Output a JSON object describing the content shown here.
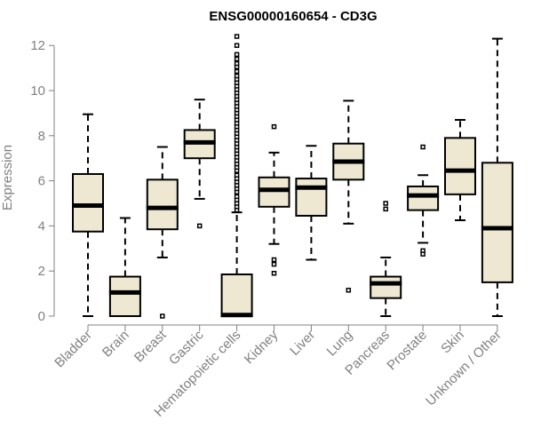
{
  "chart_data": {
    "type": "boxplot",
    "title": "ENSG00000160654 - CD3G",
    "xlabel": "",
    "ylabel": "Expression",
    "ylim": [
      0,
      12.5
    ],
    "yticks": [
      0,
      2,
      4,
      6,
      8,
      10,
      12
    ],
    "box_fill": "#EEE8D2",
    "axis_color": "#808080",
    "categories": [
      "Bladder",
      "Brain",
      "Breast",
      "Gastric",
      "Hematopoietic cells",
      "Kidney",
      "Liver",
      "Lung",
      "Pancreas",
      "Prostate",
      "Skin",
      "Unknown / Other"
    ],
    "boxes": [
      {
        "name": "Bladder",
        "whisker_low": 0.0,
        "q1": 3.75,
        "median": 4.9,
        "q3": 6.3,
        "whisker_high": 8.95,
        "outliers": []
      },
      {
        "name": "Brain",
        "whisker_low": 0.0,
        "q1": 0.0,
        "median": 1.05,
        "q3": 1.75,
        "whisker_high": 4.35,
        "outliers": []
      },
      {
        "name": "Breast",
        "whisker_low": 2.6,
        "q1": 3.85,
        "median": 4.8,
        "q3": 6.05,
        "whisker_high": 7.5,
        "outliers": [
          0.0
        ]
      },
      {
        "name": "Gastric",
        "whisker_low": 5.2,
        "q1": 7.0,
        "median": 7.7,
        "q3": 8.25,
        "whisker_high": 9.6,
        "outliers": [
          4.0
        ]
      },
      {
        "name": "Hematopoietic cells",
        "whisker_low": 0.0,
        "q1": 0.0,
        "median": 0.05,
        "q3": 1.85,
        "whisker_high": 4.6,
        "outliers": [
          4.7,
          4.85,
          5.0,
          5.15,
          5.3,
          5.5,
          5.65,
          5.8,
          5.95,
          6.1,
          6.25,
          6.45,
          6.6,
          6.75,
          6.9,
          7.05,
          7.2,
          7.35,
          7.5,
          7.65,
          7.8,
          7.95,
          8.1,
          8.25,
          8.4,
          8.55,
          8.7,
          8.85,
          9.0,
          9.15,
          9.3,
          9.45,
          9.6,
          9.75,
          9.9,
          10.05,
          10.2,
          10.35,
          10.5,
          10.65,
          10.85,
          11.05,
          11.2,
          11.4,
          11.6,
          12.0,
          12.4
        ]
      },
      {
        "name": "Kidney",
        "whisker_low": 3.2,
        "q1": 4.85,
        "median": 5.6,
        "q3": 6.15,
        "whisker_high": 7.25,
        "outliers": [
          8.4,
          2.5,
          2.3,
          1.9
        ]
      },
      {
        "name": "Liver",
        "whisker_low": 2.5,
        "q1": 4.45,
        "median": 5.7,
        "q3": 6.1,
        "whisker_high": 7.55,
        "outliers": []
      },
      {
        "name": "Lung",
        "whisker_low": 4.1,
        "q1": 6.05,
        "median": 6.85,
        "q3": 7.65,
        "whisker_high": 9.55,
        "outliers": [
          1.15
        ]
      },
      {
        "name": "Pancreas",
        "whisker_low": 0.0,
        "q1": 0.8,
        "median": 1.45,
        "q3": 1.75,
        "whisker_high": 2.6,
        "outliers": [
          5.0,
          4.75
        ]
      },
      {
        "name": "Prostate",
        "whisker_low": 3.25,
        "q1": 4.7,
        "median": 5.35,
        "q3": 5.75,
        "whisker_high": 6.25,
        "outliers": [
          7.5,
          2.9,
          2.75
        ]
      },
      {
        "name": "Skin",
        "whisker_low": 4.25,
        "q1": 5.4,
        "median": 6.45,
        "q3": 7.9,
        "whisker_high": 8.7,
        "outliers": []
      },
      {
        "name": "Unknown / Other",
        "whisker_low": 0.0,
        "q1": 1.5,
        "median": 3.9,
        "q3": 6.8,
        "whisker_high": 12.3,
        "outliers": []
      }
    ]
  }
}
